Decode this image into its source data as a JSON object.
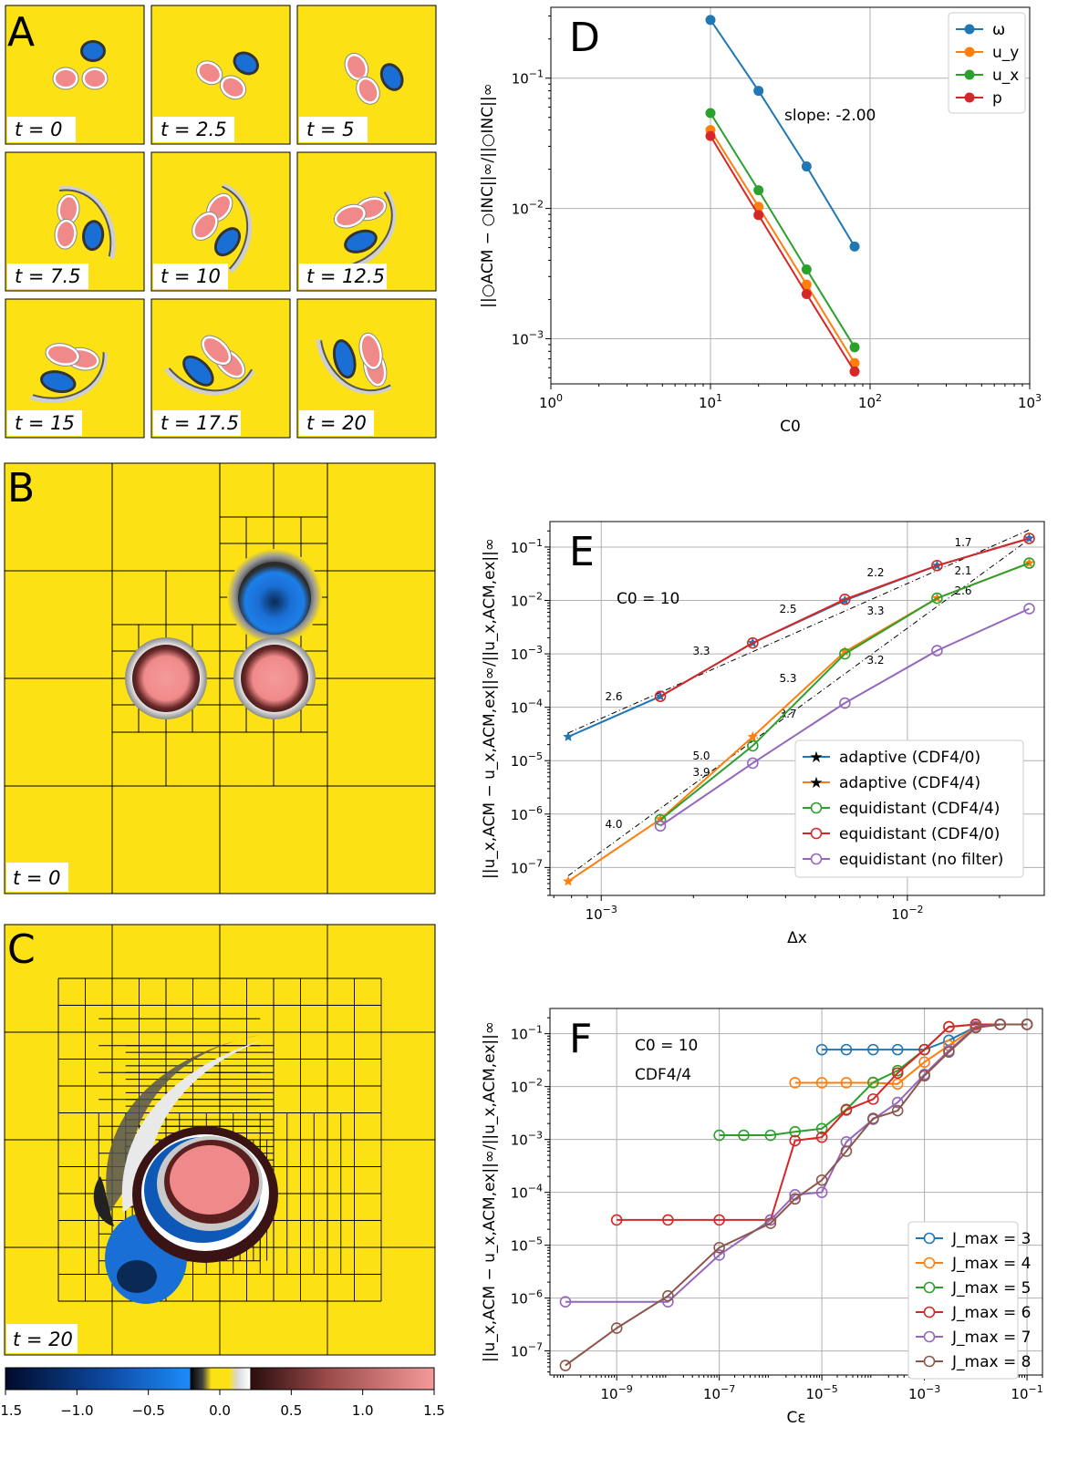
{
  "panels": {
    "A": {
      "letter": "A",
      "time_labels": [
        "t = 0",
        "t = 2.5",
        "t = 5",
        "t = 7.5",
        "t = 10",
        "t = 12.5",
        "t = 15",
        "t = 17.5",
        "t = 20"
      ]
    },
    "B": {
      "letter": "B",
      "time_label": "t = 0"
    },
    "C": {
      "letter": "C",
      "time_label": "t = 20"
    }
  },
  "colorbar": {
    "ticks": [
      "−1.5",
      "−1.0",
      "−0.5",
      "0.0",
      "0.5",
      "1.0",
      "1.5"
    ],
    "values": [
      -1.5,
      -1.0,
      -0.5,
      0.0,
      0.5,
      1.0,
      1.5
    ]
  },
  "colors": {
    "background_yellow": "#fce114",
    "vortex_blue": "#1a6fd6",
    "vortex_pink": "#f08a8a",
    "s_blue": "#1f77b4",
    "s_orange": "#ff7f0e",
    "s_green": "#2ca02c",
    "s_red": "#d62728",
    "s_purple": "#9467bd",
    "s_brown": "#8c564b"
  },
  "chart_data": [
    {
      "id": "D",
      "letter": "D",
      "type": "line",
      "scale": "log-log",
      "xlabel": "C0",
      "ylabel": "||○ACM − ○INC||∞/||○INC||∞",
      "xlim": [
        1,
        1000
      ],
      "ylim": [
        0.00045,
        0.35
      ],
      "xticks": [
        "10^0",
        "10^1",
        "10^2",
        "10^3"
      ],
      "yticks": [
        "10^-3",
        "10^-2",
        "10^-1"
      ],
      "annotation": "slope: -2.00",
      "legend_position": "top-right",
      "series": [
        {
          "name": "ω",
          "x": [
            10,
            20,
            40,
            80
          ],
          "y": [
            0.28,
            0.08,
            0.021,
            0.0051
          ]
        },
        {
          "name": "u_y",
          "x": [
            10,
            20,
            40,
            80
          ],
          "y": [
            0.04,
            0.0103,
            0.0026,
            0.00065
          ]
        },
        {
          "name": "u_x",
          "x": [
            10,
            20,
            40,
            80
          ],
          "y": [
            0.054,
            0.0138,
            0.0034,
            0.00086
          ]
        },
        {
          "name": "p",
          "x": [
            10,
            20,
            40,
            80
          ],
          "y": [
            0.036,
            0.0089,
            0.0022,
            0.00056
          ]
        }
      ]
    },
    {
      "id": "E",
      "letter": "E",
      "type": "line",
      "scale": "log-log",
      "xlabel": "Δx",
      "ylabel": "||u_x,ACM − u_x,ACM,ex||∞/||u_x,ACM,ex||∞",
      "xlim": [
        0.00068,
        0.028
      ],
      "ylim": [
        3e-08,
        0.3
      ],
      "xticks": [
        "10^-3",
        "10^-2"
      ],
      "yticks": [
        "10^-7",
        "10^-6",
        "10^-5",
        "10^-4",
        "10^-3",
        "10^-2",
        "10^-1"
      ],
      "annotation": "C0 = 10",
      "legend_position": "bottom-right",
      "slope_labels_upper": [
        "2.6",
        "3.3",
        "2.5",
        "2.2",
        "1.7"
      ],
      "slope_labels_lower": [
        "4.0",
        "5.0",
        "5.3",
        "3.3",
        "2.1"
      ],
      "slope_labels_nofilter": [
        "3.9",
        "3.7",
        "3.2",
        "2.6"
      ],
      "series": [
        {
          "name": "adaptive (CDF4/0)",
          "marker": "star",
          "x": [
            0.00078,
            0.00156,
            0.003125,
            0.00625,
            0.0125,
            0.025
          ],
          "y": [
            2.8e-05,
            0.00016,
            0.0016,
            0.01,
            0.045,
            0.145
          ]
        },
        {
          "name": "adaptive (CDF4/4)",
          "marker": "star",
          "x": [
            0.00078,
            0.00156,
            0.003125,
            0.00625,
            0.0125,
            0.025
          ],
          "y": [
            5.5e-08,
            8e-07,
            2.8e-05,
            0.0011,
            0.011,
            0.05
          ]
        },
        {
          "name": "equidistant (CDF4/4)",
          "marker": "circle",
          "x": [
            0.00156,
            0.003125,
            0.00625,
            0.0125,
            0.025
          ],
          "y": [
            7.8e-07,
            1.9e-05,
            0.001,
            0.011,
            0.05
          ]
        },
        {
          "name": "equidistant (CDF4/0)",
          "marker": "circle",
          "x": [
            0.00156,
            0.003125,
            0.00625,
            0.0125,
            0.025
          ],
          "y": [
            0.00016,
            0.0016,
            0.0105,
            0.045,
            0.145
          ]
        },
        {
          "name": "equidistant (no filter)",
          "marker": "circle",
          "x": [
            0.00156,
            0.003125,
            0.00625,
            0.0125,
            0.025
          ],
          "y": [
            6e-07,
            9e-06,
            0.00012,
            0.00115,
            0.007
          ]
        }
      ]
    },
    {
      "id": "F",
      "letter": "F",
      "type": "line",
      "scale": "log-log",
      "xlabel": "Cε",
      "ylabel": "||u_x,ACM − u_x,ACM,ex||∞/||u_x,ACM,ex||∞",
      "xlim": [
        5e-11,
        0.2
      ],
      "ylim": [
        3.5e-08,
        0.3
      ],
      "xticks": [
        "10^-9",
        "10^-7",
        "10^-5",
        "10^-3",
        "10^-1"
      ],
      "yticks": [
        "10^-7",
        "10^-6",
        "10^-5",
        "10^-4",
        "10^-3",
        "10^-2",
        "10^-1"
      ],
      "annotation_lines": [
        "C0 = 10",
        "CDF4/4"
      ],
      "legend_position": "bottom-right",
      "series": [
        {
          "name": "J_max = 3",
          "x": [
            1e-05,
            3e-05,
            0.0001,
            0.0003,
            0.001,
            0.003,
            0.01,
            0.03,
            0.1
          ],
          "y": [
            0.05,
            0.05,
            0.05,
            0.05,
            0.05,
            0.075,
            0.135,
            0.15,
            0.15
          ]
        },
        {
          "name": "J_max = 4",
          "x": [
            3e-06,
            1e-05,
            3e-05,
            0.0001,
            0.0003,
            0.001,
            0.003,
            0.01,
            0.03,
            0.1
          ],
          "y": [
            0.0118,
            0.0118,
            0.0118,
            0.0118,
            0.0112,
            0.029,
            0.06,
            0.135,
            0.15,
            0.15
          ]
        },
        {
          "name": "J_max = 5",
          "x": [
            1e-07,
            3e-07,
            1e-06,
            3e-06,
            1e-05,
            3e-05,
            0.0001,
            0.0003,
            0.001,
            0.003,
            0.01,
            0.03,
            0.1
          ],
          "y": [
            0.0012,
            0.0012,
            0.0012,
            0.0014,
            0.0016,
            0.0037,
            0.012,
            0.02,
            0.05,
            0.135,
            0.15,
            0.15,
            0.15
          ]
        },
        {
          "name": "J_max = 6",
          "x": [
            1e-09,
            1e-08,
            1e-07,
            1e-06,
            3e-06,
            1e-05,
            3e-05,
            0.0001,
            0.0003,
            0.001,
            0.003,
            0.01,
            0.03,
            0.1
          ],
          "y": [
            3e-05,
            3e-05,
            3e-05,
            3e-05,
            0.00095,
            0.0011,
            0.0036,
            0.0058,
            0.018,
            0.05,
            0.135,
            0.15,
            0.15,
            0.15
          ]
        },
        {
          "name": "J_max = 7",
          "x": [
            1e-10,
            1e-08,
            1e-07,
            1e-06,
            3e-06,
            1e-05,
            3e-05,
            0.0001,
            0.0003,
            0.001,
            0.003,
            0.01,
            0.03,
            0.1
          ],
          "y": [
            8.5e-07,
            8.5e-07,
            6.5e-06,
            3e-05,
            9e-05,
            0.0001,
            0.0009,
            0.0024,
            0.005,
            0.017,
            0.048,
            0.135,
            0.15,
            0.15
          ]
        },
        {
          "name": "J_max = 8",
          "x": [
            1e-10,
            1e-09,
            1e-08,
            1e-07,
            1e-06,
            3e-06,
            1e-05,
            3e-05,
            0.0001,
            0.0003,
            0.001,
            0.003,
            0.01,
            0.03,
            0.1
          ],
          "y": [
            5.3e-08,
            2.7e-07,
            1.1e-06,
            9e-06,
            2.6e-05,
            7.5e-05,
            0.00017,
            0.0006,
            0.0025,
            0.0035,
            0.016,
            0.045,
            0.13,
            0.15,
            0.15
          ]
        }
      ]
    }
  ]
}
